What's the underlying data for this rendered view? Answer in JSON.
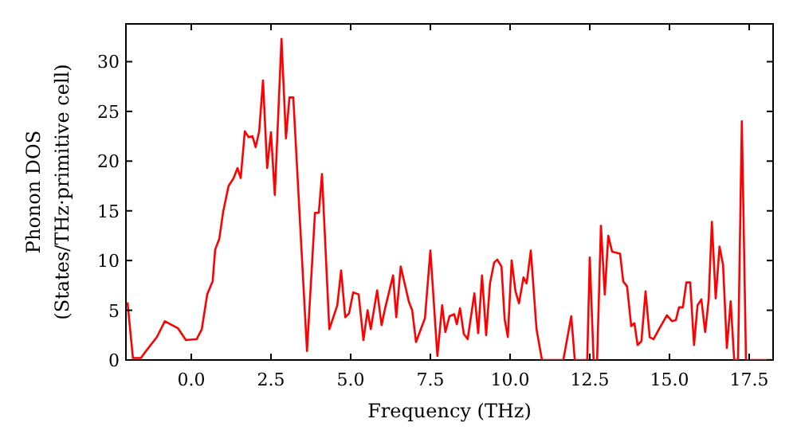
{
  "chart_data": {
    "type": "line",
    "xlabel": "Frequency (THz)",
    "ylabel": "Phonon DOS\n(States/THz·primitive cell)",
    "xlim": [
      -2.05,
      18.25
    ],
    "ylim": [
      0,
      33.8
    ],
    "xticks": [
      {
        "value": 0,
        "label": "0.0"
      },
      {
        "value": 2.5,
        "label": "2.5"
      },
      {
        "value": 5,
        "label": "5.0"
      },
      {
        "value": 7.5,
        "label": "7.5"
      },
      {
        "value": 10,
        "label": "10.0"
      },
      {
        "value": 12.5,
        "label": "12.5"
      },
      {
        "value": 15,
        "label": "15.0"
      },
      {
        "value": 17.5,
        "label": "17.5"
      }
    ],
    "yticks": [
      0,
      5,
      10,
      15,
      20,
      25,
      30
    ],
    "grid": false,
    "series": [
      {
        "color": "#ff0000",
        "x": [
          -2.0,
          -1.83,
          -1.58,
          -1.42,
          -1.08,
          -0.83,
          -0.42,
          -0.17,
          0.17,
          0.33,
          0.5,
          0.67,
          0.75,
          0.88,
          1.0,
          1.17,
          1.33,
          1.45,
          1.55,
          1.68,
          1.8,
          1.92,
          2.02,
          2.13,
          2.25,
          2.38,
          2.5,
          2.62,
          2.83,
          2.97,
          3.08,
          3.2,
          3.42,
          3.63,
          3.88,
          4.0,
          4.1,
          4.33,
          4.58,
          4.7,
          4.83,
          4.95,
          5.08,
          5.25,
          5.4,
          5.53,
          5.63,
          5.83,
          5.97,
          6.08,
          6.33,
          6.43,
          6.57,
          6.83,
          6.93,
          7.05,
          7.33,
          7.5,
          7.72,
          7.87,
          7.97,
          8.1,
          8.25,
          8.33,
          8.43,
          8.55,
          8.67,
          8.88,
          9.0,
          9.12,
          9.25,
          9.37,
          9.5,
          9.6,
          9.73,
          9.83,
          9.93,
          10.05,
          10.17,
          10.28,
          10.42,
          10.52,
          10.65,
          10.83,
          11.0,
          11.67,
          11.92,
          12.03,
          12.42,
          12.5,
          12.62,
          12.73,
          12.85,
          12.97,
          13.08,
          13.2,
          13.45,
          13.55,
          13.67,
          13.8,
          13.9,
          14.0,
          14.12,
          14.25,
          14.38,
          14.5,
          14.67,
          14.92,
          15.08,
          15.2,
          15.3,
          15.42,
          15.53,
          15.65,
          15.77,
          15.88,
          16.0,
          16.12,
          16.23,
          16.33,
          16.45,
          16.57,
          16.68,
          16.8,
          16.92,
          17.03,
          17.15,
          17.27,
          17.4,
          18.2
        ],
        "values": [
          5.8,
          0.2,
          0.2,
          0.9,
          2.3,
          3.9,
          3.2,
          2.0,
          2.1,
          3.1,
          6.6,
          7.9,
          11.1,
          12.2,
          14.9,
          17.5,
          18.3,
          19.3,
          18.3,
          23.0,
          22.4,
          22.5,
          21.4,
          23.0,
          28.1,
          19.3,
          22.9,
          16.6,
          32.3,
          22.3,
          26.4,
          26.4,
          13.3,
          0.9,
          14.8,
          14.8,
          18.7,
          3.1,
          5.5,
          9.0,
          4.3,
          4.7,
          6.8,
          6.6,
          2.0,
          5.0,
          3.1,
          7.0,
          3.5,
          5.2,
          8.5,
          4.3,
          9.4,
          5.8,
          5.0,
          1.8,
          4.2,
          11.0,
          0.4,
          5.5,
          2.8,
          4.4,
          4.6,
          3.6,
          5.2,
          2.6,
          2.1,
          6.7,
          2.7,
          8.5,
          2.5,
          7.7,
          9.8,
          10.1,
          9.4,
          4.1,
          2.3,
          10.0,
          6.9,
          5.7,
          8.3,
          7.7,
          11.0,
          3.1,
          0,
          0,
          4.4,
          0,
          0,
          10.3,
          0,
          0,
          13.5,
          6.6,
          12.5,
          10.9,
          10.7,
          7.9,
          7.4,
          3.4,
          3.7,
          1.5,
          1.9,
          6.9,
          2.3,
          2.1,
          3.1,
          4.5,
          3.9,
          4.0,
          5.3,
          5.3,
          7.8,
          7.8,
          1.5,
          5.5,
          6.1,
          2.8,
          6.1,
          13.9,
          6.2,
          11.4,
          9.6,
          1.2,
          5.9,
          0,
          0,
          24.0,
          0,
          0
        ]
      }
    ]
  }
}
